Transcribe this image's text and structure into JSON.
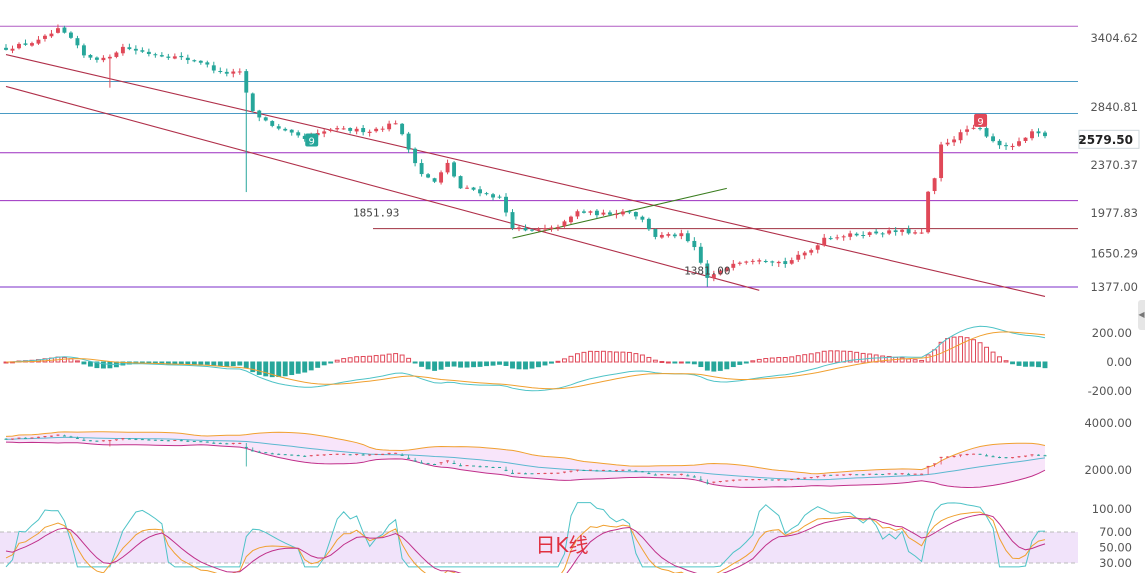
{
  "chart_data": {
    "type": "candlestick",
    "main_panel": {
      "y_axis_ticks": [
        3404.62,
        2840.81,
        2370.37,
        1977.83,
        1650.29,
        1377.0
      ],
      "current_price": "2579.50",
      "y_range": [
        1200,
        3700
      ],
      "horizontal_levels": [
        {
          "value": 3500,
          "color": "#b05cc4"
        },
        {
          "value": 3050,
          "color": "#4a9bc4"
        },
        {
          "value": 2790,
          "color": "#4a9bc4"
        },
        {
          "value": 2470,
          "color": "#9c2fc0"
        },
        {
          "value": 2080,
          "color": "#9c2fc0"
        },
        {
          "value": 1851.93,
          "label": "1851.93",
          "color": "#a03040"
        },
        {
          "value": 1377.0,
          "color": "#7b2cc8"
        }
      ],
      "annotations": [
        {
          "label": "1851.93",
          "index": 57,
          "value": 1851.93
        },
        {
          "label": "1381.00",
          "index": 108,
          "value": 1381.0
        },
        {
          "label": "9",
          "index": 47,
          "value": 2570,
          "color": "#26a69a"
        },
        {
          "label": "9",
          "index": 150,
          "value": 2730,
          "color": "#e04858"
        }
      ],
      "trend_lines": [
        {
          "from": [
            0,
            3270
          ],
          "to": [
            160,
            1300
          ],
          "color": "#b0304a"
        },
        {
          "from": [
            0,
            3010
          ],
          "to": [
            116,
            1350
          ],
          "color": "#b0304a"
        },
        {
          "from": [
            78,
            1775
          ],
          "to": [
            111,
            2180
          ],
          "color": "#3a7d1f"
        }
      ],
      "candles": []
    },
    "macd_panel": {
      "y_axis_ticks": [
        "200.00",
        "0.00",
        "-200.00"
      ],
      "y_range": [
        -300,
        300
      ]
    },
    "boll_panel": {
      "y_axis_ticks": [
        "4000.00",
        "2000.00"
      ],
      "y_range": [
        1200,
        4600
      ]
    },
    "kdj_panel": {
      "y_axis_ticks": [
        "100.00",
        "70.00",
        "50.00",
        "30.00"
      ],
      "y_range": [
        25,
        110
      ]
    },
    "watermark": "日K线",
    "colors": {
      "up": "#e04858",
      "down": "#26a69a"
    }
  }
}
